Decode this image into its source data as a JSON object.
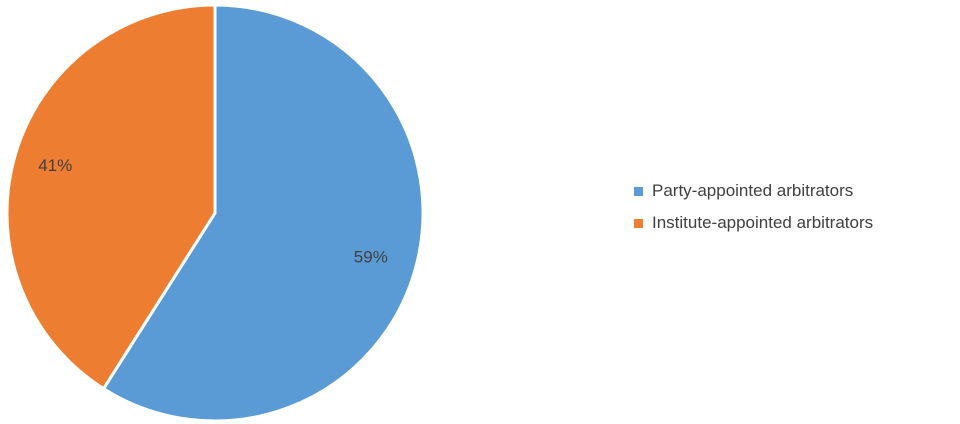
{
  "chart_data": {
    "type": "pie",
    "categories": [
      "Party-appointed arbitrators",
      "Institute-appointed arbitrators"
    ],
    "values": [
      59,
      41
    ],
    "value_labels": [
      "59%",
      "41%"
    ],
    "colors": [
      "#5B9BD5",
      "#ED7D31"
    ],
    "legend_position": "right"
  }
}
